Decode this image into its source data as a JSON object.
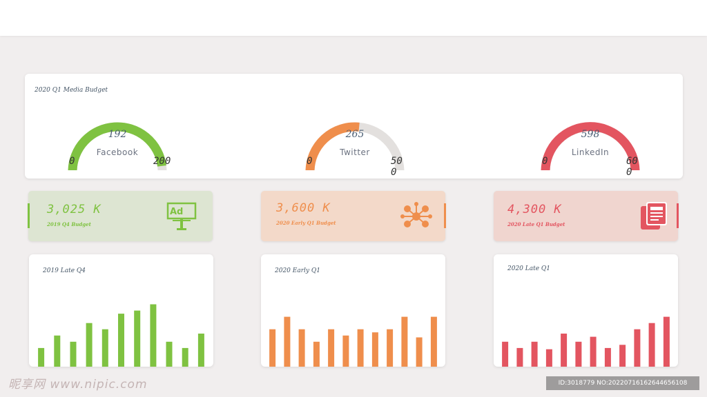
{
  "gauge_panel": {
    "title": "2020 Q1 Media Budget",
    "gauges": [
      {
        "name": "Facebook",
        "value": 192,
        "value_text": "192",
        "min_label": "0",
        "max_label": "200",
        "max": 200,
        "color": "#7fc241"
      },
      {
        "name": "Twitter",
        "value": 265,
        "value_text": "265",
        "min_label": "0",
        "max_label": "500",
        "max": 500,
        "color": "#ef8e4c"
      },
      {
        "name": "LinkedIn",
        "value": 598,
        "value_text": "598",
        "min_label": "0",
        "max_label": "600",
        "max": 600,
        "color": "#e35560"
      }
    ],
    "track_color": "#e3e0de"
  },
  "kpis": [
    {
      "amount": "3,025 K",
      "label": "2019 Q4 Budget",
      "icon": "billboard-ad-icon",
      "icon_text": "Ad",
      "color": "#7fc241",
      "bg": "#dde5d2"
    },
    {
      "amount": "3,600 K",
      "label": "2020 Early Q1 Budget",
      "icon": "social-network-icon",
      "color": "#ef8e4c",
      "bg": "#f3d9c9"
    },
    {
      "amount": "4,300 K",
      "label": "2020 Late Q1 Budget",
      "icon": "document-icon",
      "color": "#e35560",
      "bg": "#f0d5cf"
    }
  ],
  "chart_data": [
    {
      "type": "bar",
      "title": "2019 Late Q4",
      "values": [
        3,
        5,
        4,
        7,
        6,
        8.5,
        9,
        10,
        4,
        3,
        5.3
      ],
      "ylim": [
        0,
        10.5
      ],
      "color": "#7fc241"
    },
    {
      "type": "bar",
      "title": "2020 Early Q1",
      "values": [
        6,
        8,
        6,
        4,
        6,
        5,
        6,
        5.5,
        6,
        8,
        4.7,
        8
      ],
      "ylim": [
        0,
        10.5
      ],
      "color": "#ef8e4c"
    },
    {
      "type": "bar",
      "title": "2020 Late Q1",
      "values": [
        4,
        3,
        4,
        2.8,
        5.3,
        4,
        4.8,
        3,
        3.5,
        6,
        7,
        8
      ],
      "ylim": [
        0,
        10.5
      ],
      "color": "#e35560"
    }
  ],
  "watermark": {
    "left_text": "昵享网 www.nipic.com",
    "id_text": "ID:3018779 NO:20220716162644656108"
  }
}
